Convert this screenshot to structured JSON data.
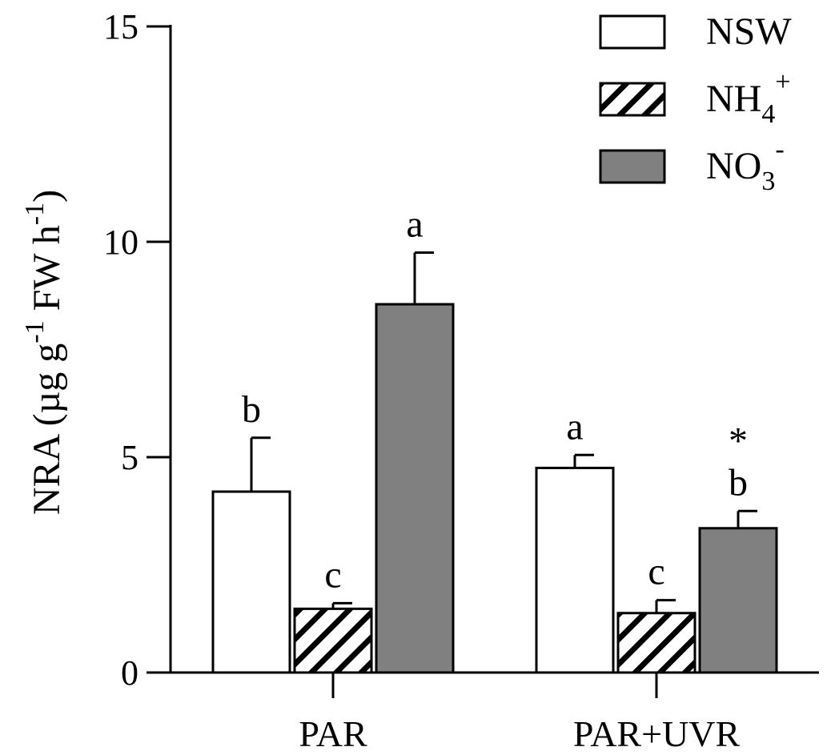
{
  "chart_data": {
    "type": "bar",
    "categories": [
      "PAR",
      "PAR+UVR"
    ],
    "ylim": [
      0,
      15
    ],
    "yticks": [
      0,
      5,
      10,
      15
    ],
    "ylabel": {
      "prefix": "NRA (µg g",
      "sup1": "-1",
      "middle": " FW h",
      "sup2": "-1",
      "suffix": ")"
    },
    "grid": false,
    "legend_position": "top-right",
    "series": [
      {
        "key": "NSW",
        "legend": {
          "main": "NSW",
          "sub": "",
          "sup": ""
        },
        "fill": "#ffffff",
        "pattern": "none",
        "values": [
          4.2,
          4.75
        ],
        "errors": [
          1.25,
          0.3
        ],
        "letters": [
          "b",
          "a"
        ]
      },
      {
        "key": "NH4+",
        "legend": {
          "main": "NH",
          "sub": "4",
          "sup": "+"
        },
        "fill": "#ffffff",
        "pattern": "hatch",
        "values": [
          1.48,
          1.38
        ],
        "errors": [
          0.13,
          0.3
        ],
        "letters": [
          "c",
          "c"
        ]
      },
      {
        "key": "NO3-",
        "legend": {
          "main": "NO",
          "sub": "3",
          "sup": "-"
        },
        "fill": "#808080",
        "pattern": "none",
        "values": [
          8.55,
          3.35
        ],
        "errors": [
          1.2,
          0.4
        ],
        "letters": [
          "a",
          "b"
        ]
      }
    ],
    "annotations": [
      {
        "text": "*",
        "category": "PAR+UVR",
        "series": "NO3-"
      }
    ]
  }
}
